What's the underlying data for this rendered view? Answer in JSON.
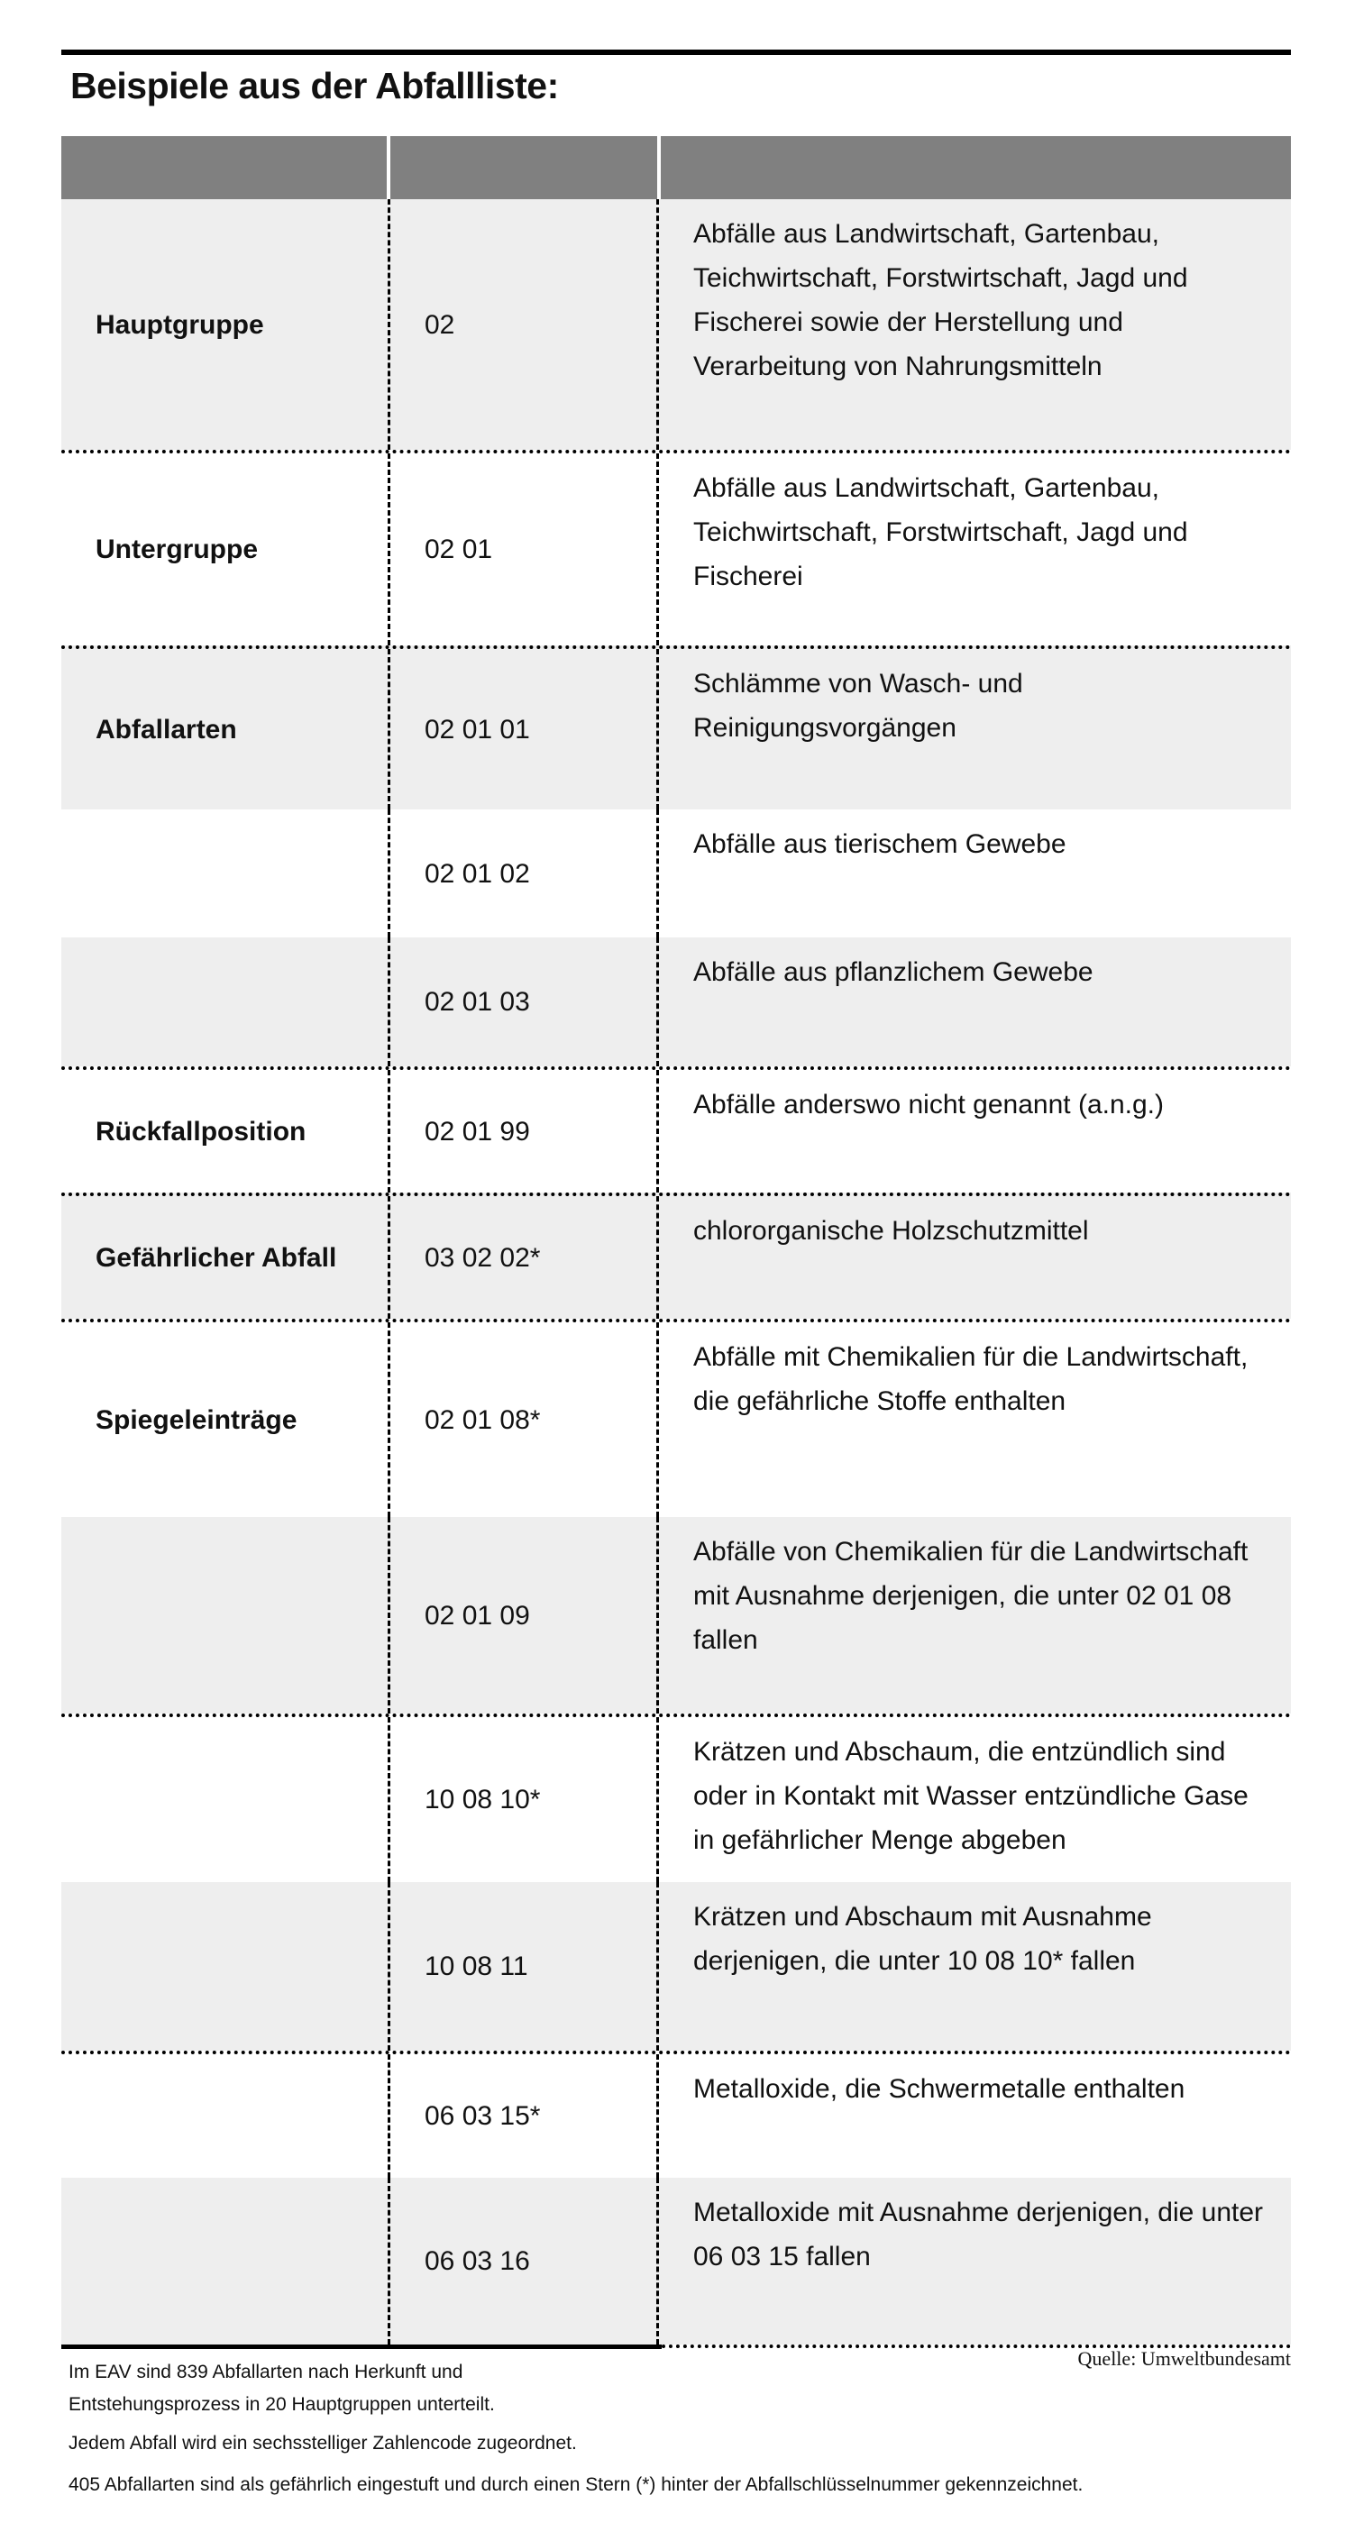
{
  "title": "Beispiele aus der Abfallliste:",
  "table": {
    "header": [
      "",
      "",
      ""
    ],
    "rows": [
      {
        "label": "Hauptgruppe",
        "code": "02",
        "text": "Abfälle aus Landwirtschaft, Gartenbau, Teichwirtschaft, Forstwirtschaft, Jagd und Fischerei sowie der Herstellung und Verarbeitung von Nahrungsmitteln"
      },
      {
        "label": "Untergruppe",
        "code": "02 01",
        "text": "Abfälle aus Landwirtschaft, Gartenbau, Teichwirtschaft, Forstwirtschaft, Jagd und Fischerei"
      },
      {
        "label": "Abfallarten",
        "code": "02 01 01",
        "text": "Schlämme von Wasch- und Reinigungsvorgängen"
      },
      {
        "label": "",
        "code": "02 01 02",
        "text": "Abfälle aus tierischem Gewebe"
      },
      {
        "label": "",
        "code": "02 01 03",
        "text": "Abfälle aus pflanzlichem Gewebe"
      },
      {
        "label": "Rückfallposition",
        "code": "02 01 99",
        "text": "Abfälle anderswo nicht genannt (a.n.g.)"
      },
      {
        "label": "Gefährlicher Abfall",
        "code": "03 02 02*",
        "text": "chlororganische Holzschutzmittel"
      },
      {
        "label": "Spiegeleinträge",
        "code": "02 01 08*",
        "text": " Abfälle mit Chemikalien für die Landwirtschaft, die gefährliche Stoffe enthalten"
      },
      {
        "label": "",
        "code": "02 01 09",
        "text": "Abfälle von Chemikalien für die Landwirtschaft mit Ausnahme derjenigen, die unter 02 01 08 fallen"
      },
      {
        "label": "",
        "code": "10 08 10*",
        "text": "Krätzen und Abschaum, die entzündlich sind oder in Kontakt mit Wasser entzündliche Gase in gefährlicher Menge abgeben"
      },
      {
        "label": "",
        "code": "10 08 11",
        "text": "Krätzen und Abschaum mit Ausnahme derjenigen, die unter 10 08 10* fallen"
      },
      {
        "label": "",
        "code": "06 03 15*",
        "text": "Metalloxide, die Schwermetalle enthalten"
      },
      {
        "label": "",
        "code": "06 03 16",
        "text": "Metalloxide mit Ausnahme derjenigen, die unter 06 03 15 fallen"
      }
    ]
  },
  "footer": {
    "notes": [
      "Im EAV sind 839 Abfallarten nach Herkunft und",
      "Entstehungsprozess in 20 Hauptgruppen unterteilt.",
      "Jedem Abfall wird ein sechsstelliger Zahlencode zugeordnet.",
      "405 Abfallarten sind als gefährlich eingestuft und durch einen Stern (*) hinter der Abfallschlüsselnummer gekennzeichnet."
    ],
    "source": "Quelle: Umweltbundesamt"
  }
}
